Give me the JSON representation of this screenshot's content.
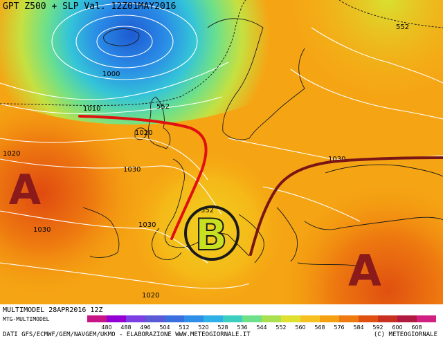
{
  "header": {
    "title": "GPT Z500 + SLP Val. 12Z01MAY2016"
  },
  "footer": {
    "model_run": "MULTIMODEL 28APR2016 12Z",
    "model_name": "MTG-MULTIMODEL",
    "sources": "DATI GFS/ECMWF/GEM/NAVGEM/UKMO - ELABORAZIONE WWW.METEOGIORNALE.IT",
    "copyright": "(C) METEOGIORNALE"
  },
  "legend": {
    "values": [
      "480",
      "488",
      "496",
      "504",
      "512",
      "520",
      "528",
      "536",
      "544",
      "552",
      "560",
      "568",
      "576",
      "584",
      "592",
      "600",
      "608"
    ],
    "colors": [
      "#c71585",
      "#9400d3",
      "#7b3fe4",
      "#5a5ad6",
      "#3a6fe0",
      "#2f8fe8",
      "#2fb0e6",
      "#3ccfc0",
      "#6fe08a",
      "#a8e050",
      "#e0e030",
      "#f5c020",
      "#f5a010",
      "#ee7a10",
      "#e05010",
      "#c83020",
      "#b01a40",
      "#d02080"
    ]
  },
  "isobar_labels": [
    "1000",
    "1010",
    "1020",
    "1030",
    "1030",
    "1030",
    "1030",
    "1020",
    "1020"
  ],
  "z500_labels": [
    "552",
    "552",
    "552"
  ],
  "pressure_centers": [
    {
      "letter": "A",
      "meaning": "high"
    },
    {
      "letter": "B",
      "meaning": "low"
    },
    {
      "letter": "A",
      "meaning": "high"
    }
  ],
  "colors": {
    "high_letter": "#8b1a1a",
    "low_letter": "#1a1a1a",
    "low_fill": "#c8e020",
    "ridge_red": "#e01010",
    "ridge_dark": "#7a1515"
  }
}
